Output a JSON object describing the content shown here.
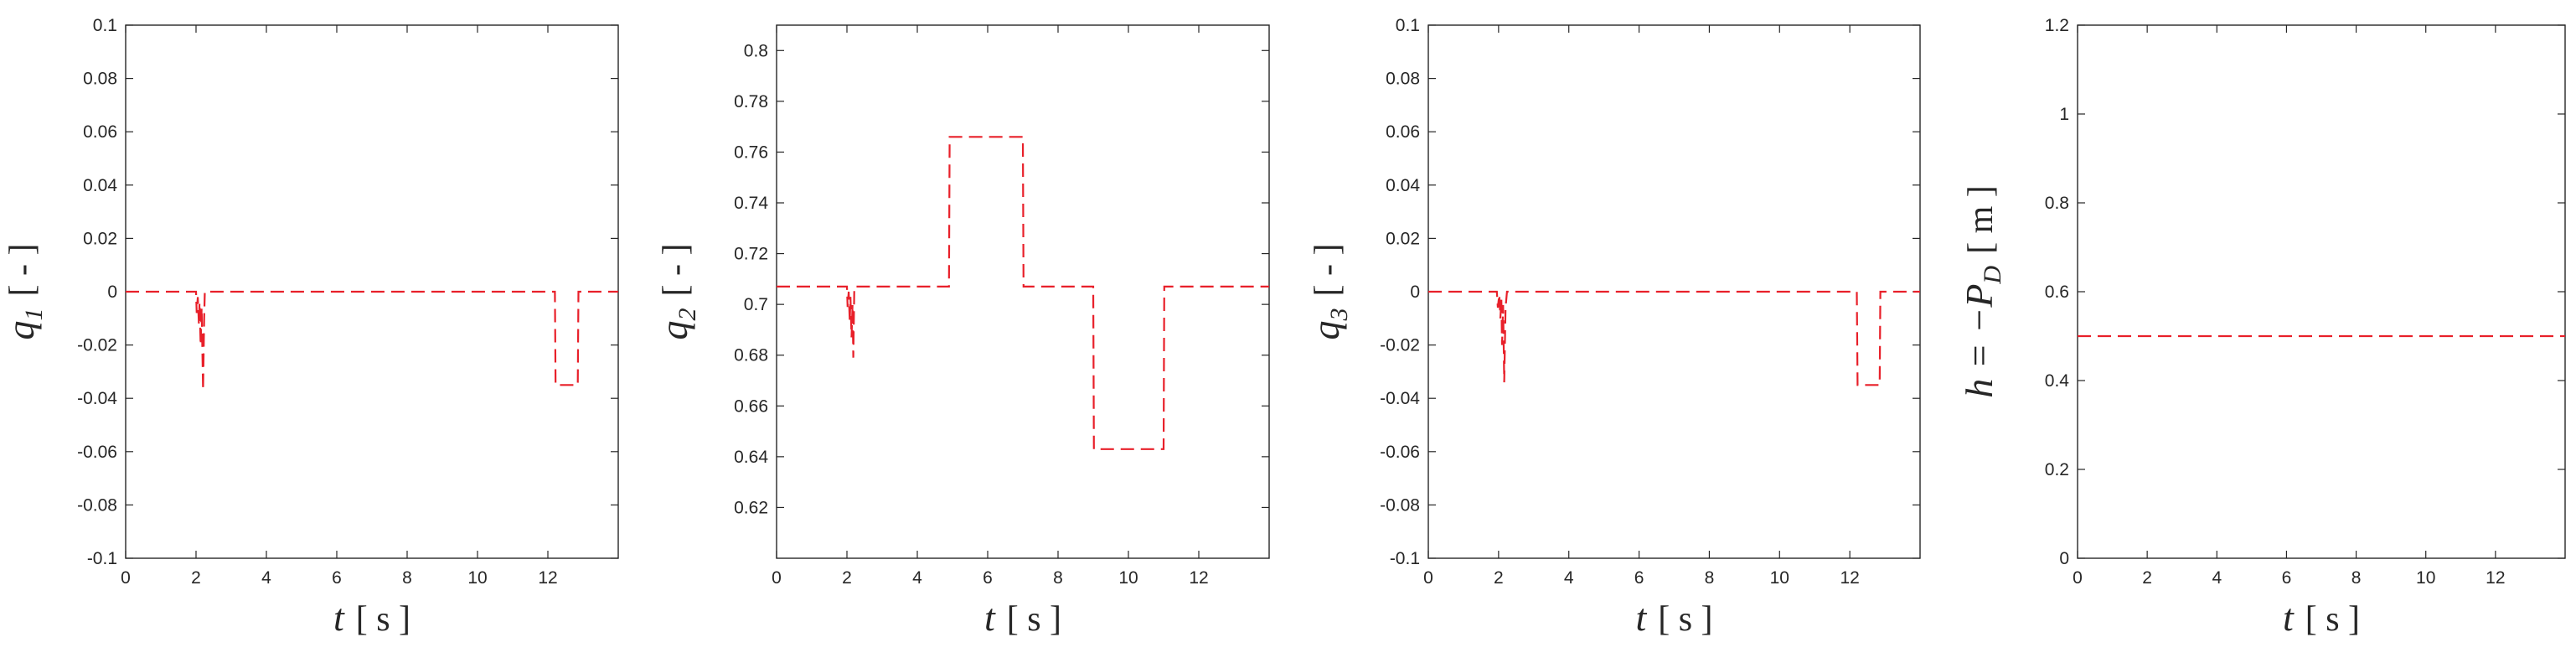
{
  "colors": {
    "series": "#e8202a",
    "axis": "#262626",
    "background": "#ffffff"
  },
  "chart_data": [
    {
      "type": "line",
      "xlabel": {
        "var": "t",
        "unit": "[ s ]"
      },
      "ylabel": {
        "var": "q",
        "sub": "1",
        "unit": "[ - ]"
      },
      "xlim": [
        0,
        14
      ],
      "ylim": [
        -0.1,
        0.1
      ],
      "xticks": [
        0,
        2,
        4,
        6,
        8,
        10,
        12
      ],
      "yticks": [
        -0.1,
        -0.08,
        -0.06,
        -0.04,
        -0.02,
        0,
        0.02,
        0.04,
        0.06,
        0.08,
        0.1
      ],
      "yticklabels": [
        "-0.1",
        "-0.08",
        "-0.06",
        "-0.04",
        "-0.02",
        "0",
        "0.02",
        "0.04",
        "0.06",
        "0.08",
        "0.1"
      ],
      "grid": false,
      "series": [
        {
          "style": "dashed",
          "x": [
            0,
            2.0,
            2.02,
            2.05,
            2.08,
            2.1,
            2.13,
            2.16,
            2.2,
            2.23,
            2.25,
            2.28,
            12.2,
            12.22,
            12.85,
            12.87,
            14
          ],
          "y": [
            0,
            0,
            -0.008,
            -0.002,
            -0.012,
            -0.004,
            -0.02,
            -0.006,
            -0.037,
            -0.01,
            0,
            0,
            0,
            -0.035,
            -0.035,
            0,
            0
          ]
        }
      ]
    },
    {
      "type": "line",
      "xlabel": {
        "var": "t",
        "unit": "[ s ]"
      },
      "ylabel": {
        "var": "q",
        "sub": "2",
        "unit": "[ - ]"
      },
      "xlim": [
        0,
        14
      ],
      "ylim": [
        0.6,
        0.81
      ],
      "xticks": [
        0,
        2,
        4,
        6,
        8,
        10,
        12
      ],
      "yticks": [
        0.62,
        0.64,
        0.66,
        0.68,
        0.7,
        0.72,
        0.74,
        0.76,
        0.78,
        0.8
      ],
      "yticklabels": [
        "0.62",
        "0.64",
        "0.66",
        "0.68",
        "0.7",
        "0.72",
        "0.74",
        "0.76",
        "0.78",
        "0.8"
      ],
      "grid": false,
      "series": [
        {
          "style": "dashed",
          "x": [
            0,
            2.0,
            2.02,
            2.05,
            2.08,
            2.1,
            2.13,
            2.16,
            2.18,
            2.21,
            2.25,
            4.9,
            4.92,
            7.0,
            7.02,
            9.0,
            9.02,
            11.0,
            11.02,
            14
          ],
          "y": [
            0.707,
            0.707,
            0.699,
            0.705,
            0.693,
            0.703,
            0.687,
            0.7,
            0.679,
            0.707,
            0.707,
            0.707,
            0.766,
            0.766,
            0.707,
            0.707,
            0.643,
            0.643,
            0.707,
            0.707
          ]
        }
      ]
    },
    {
      "type": "line",
      "xlabel": {
        "var": "t",
        "unit": "[ s ]"
      },
      "ylabel": {
        "var": "q",
        "sub": "3",
        "unit": "[ - ]"
      },
      "xlim": [
        0,
        14
      ],
      "ylim": [
        -0.1,
        0.1
      ],
      "xticks": [
        0,
        2,
        4,
        6,
        8,
        10,
        12
      ],
      "yticks": [
        -0.1,
        -0.08,
        -0.06,
        -0.04,
        -0.02,
        0,
        0.02,
        0.04,
        0.06,
        0.08,
        0.1
      ],
      "yticklabels": [
        "-0.1",
        "-0.08",
        "-0.06",
        "-0.04",
        "-0.02",
        "0",
        "0.02",
        "0.04",
        "0.06",
        "0.08",
        "0.1"
      ],
      "grid": false,
      "series": [
        {
          "style": "dashed",
          "x": [
            0,
            1.95,
            1.98,
            2.02,
            2.05,
            2.08,
            2.1,
            2.13,
            2.16,
            2.2,
            2.24,
            12.2,
            12.22,
            12.85,
            12.87,
            14
          ],
          "y": [
            0,
            0,
            -0.006,
            -0.001,
            -0.01,
            -0.003,
            -0.02,
            -0.005,
            -0.034,
            -0.006,
            0,
            0,
            -0.035,
            -0.035,
            0,
            0
          ]
        }
      ]
    },
    {
      "type": "line",
      "xlabel": {
        "var": "t",
        "unit": "[ s ]"
      },
      "ylabel": {
        "var": "h = −P",
        "sub": "D",
        "unit": "[ m ]"
      },
      "xlim": [
        0,
        14
      ],
      "ylim": [
        0,
        1.2
      ],
      "xticks": [
        0,
        2,
        4,
        6,
        8,
        10,
        12
      ],
      "yticks": [
        0,
        0.2,
        0.4,
        0.6,
        0.8,
        1,
        1.2
      ],
      "yticklabels": [
        "0",
        "0.2",
        "0.4",
        "0.6",
        "0.8",
        "1",
        "1.2"
      ],
      "grid": false,
      "series": [
        {
          "style": "dashed",
          "x": [
            0,
            14
          ],
          "y": [
            0.5,
            0.5
          ]
        }
      ]
    }
  ]
}
